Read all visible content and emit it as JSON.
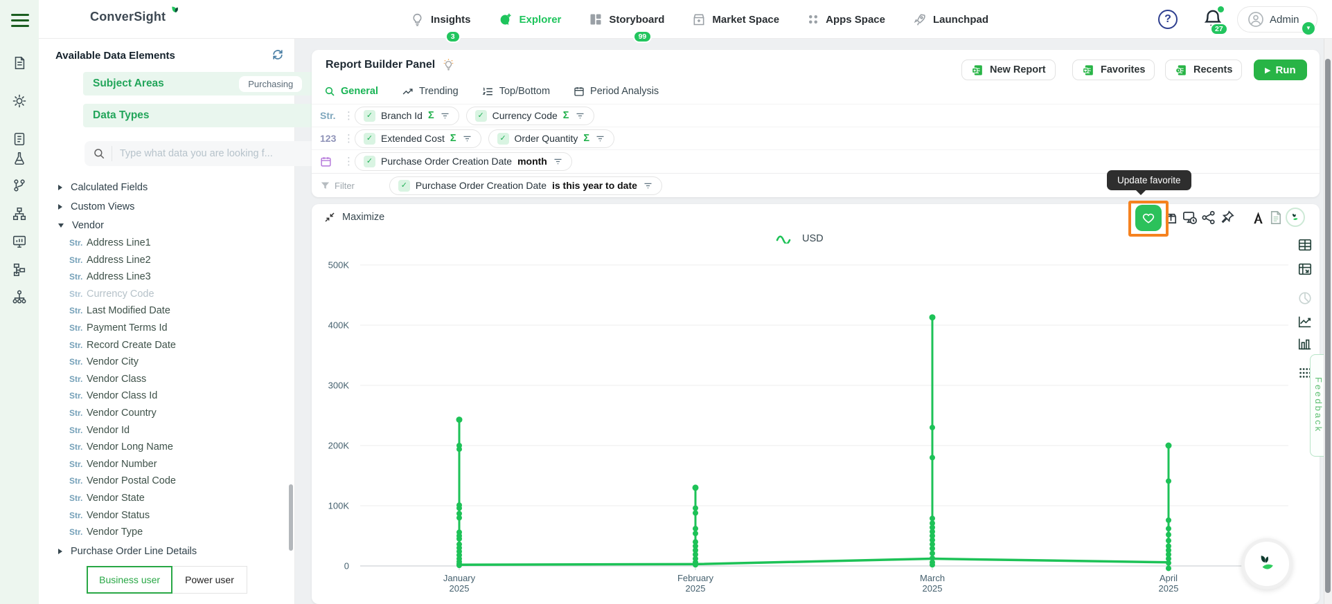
{
  "colors": {
    "accent": "#1fc35c",
    "accent_dark": "#17a34a",
    "highlight_orange": "#f5821f"
  },
  "header": {
    "logo": "ConverSight",
    "nav": [
      {
        "label": "Insights",
        "icon": "lightbulb-icon",
        "badge": "3"
      },
      {
        "label": "Explorer",
        "icon": "chat-plus-icon",
        "active": true
      },
      {
        "label": "Storyboard",
        "icon": "grid-layout-icon",
        "badge": "99"
      },
      {
        "label": "Market Space",
        "icon": "storefront-icon"
      },
      {
        "label": "Apps Space",
        "icon": "apps-dots-icon"
      },
      {
        "label": "Launchpad",
        "icon": "rocket-icon"
      }
    ],
    "help": "?",
    "notifications_badge": "27",
    "user": "Admin"
  },
  "rail_icons": [
    "document-icon",
    "settings-gear-icon",
    "survey-icon",
    "flask-icon",
    "git-branch-icon",
    "sitemap-icon",
    "dashboard-icon",
    "hierarchy-icon",
    "org-chart-icon"
  ],
  "sidebar": {
    "title": "Available Data Elements",
    "subject_areas_label": "Subject Areas",
    "subject_areas_value": "Purchasing",
    "data_types_label": "Data Types",
    "search_placeholder": "Type what data you are looking f...",
    "tree": [
      {
        "label": "Calculated Fields",
        "type": "group",
        "state": "collapsed"
      },
      {
        "label": "Custom Views",
        "type": "group",
        "state": "collapsed"
      },
      {
        "label": "Vendor",
        "type": "group",
        "state": "expanded"
      },
      {
        "label": "Address Line1",
        "prefix": "Str."
      },
      {
        "label": "Address Line2",
        "prefix": "Str."
      },
      {
        "label": "Address Line3",
        "prefix": "Str."
      },
      {
        "label": "Currency Code",
        "prefix": "Str.",
        "disabled": true
      },
      {
        "label": "Last Modified Date",
        "prefix": "Str."
      },
      {
        "label": "Payment Terms Id",
        "prefix": "Str."
      },
      {
        "label": "Record Create Date",
        "prefix": "Str."
      },
      {
        "label": "Vendor City",
        "prefix": "Str."
      },
      {
        "label": "Vendor Class",
        "prefix": "Str."
      },
      {
        "label": "Vendor Class Id",
        "prefix": "Str."
      },
      {
        "label": "Vendor Country",
        "prefix": "Str."
      },
      {
        "label": "Vendor Id",
        "prefix": "Str."
      },
      {
        "label": "Vendor Long Name",
        "prefix": "Str."
      },
      {
        "label": "Vendor Number",
        "prefix": "Str."
      },
      {
        "label": "Vendor Postal Code",
        "prefix": "Str."
      },
      {
        "label": "Vendor State",
        "prefix": "Str."
      },
      {
        "label": "Vendor Status",
        "prefix": "Str."
      },
      {
        "label": "Vendor Type",
        "prefix": "Str."
      },
      {
        "label": "Purchase Order Line Details",
        "type": "group",
        "state": "collapsed"
      }
    ],
    "footer": {
      "business": "Business user",
      "power": "Power user"
    }
  },
  "report_builder": {
    "title": "Report Builder Panel",
    "actions": {
      "new_report": "New Report",
      "favorites": "Favorites",
      "recents": "Recents",
      "run": "Run"
    },
    "tabs": [
      {
        "label": "General",
        "active": true
      },
      {
        "label": "Trending"
      },
      {
        "label": "Top/Bottom"
      },
      {
        "label": "Period Analysis"
      }
    ],
    "rows": [
      {
        "type": "Str.",
        "chips": [
          {
            "label": "Branch Id",
            "sigma": "Σ"
          },
          {
            "label": "Currency Code",
            "sigma": "Σ"
          }
        ]
      },
      {
        "type": "123",
        "chips": [
          {
            "label": "Extended Cost",
            "sigma": "Σ"
          },
          {
            "label": "Order Quantity",
            "sigma": "Σ"
          }
        ]
      },
      {
        "type": "calendar",
        "chips": [
          {
            "label": "Purchase Order Creation Date",
            "bold": "month"
          }
        ]
      }
    ],
    "filter_row": {
      "label": "Filter",
      "chip": {
        "label": "Purchase Order Creation Date",
        "bold": "is this year to date"
      }
    }
  },
  "tooltip": "Update favorite",
  "chart_toolbar": {
    "maximize": "Maximize",
    "icons": [
      "favorite-heart-icon",
      "export-icon",
      "schedule-icon",
      "share-icon",
      "pin-icon",
      "pdf-export-icon",
      "document-export-icon",
      "assistant-icon"
    ]
  },
  "right_toolbar": [
    "table-view-icon",
    "pivot-view-icon",
    "pie-chart-icon",
    "line-chart-icon",
    "bar-chart-icon",
    "more-grid-icon"
  ],
  "feedback_tab": "Feedback",
  "chart_data": {
    "type": "line",
    "title": "",
    "legend": [
      {
        "name": "USD",
        "color": "#1dc257"
      }
    ],
    "categories": [
      "January 2025",
      "February 2025",
      "March 2025",
      "April 2025"
    ],
    "ylim": [
      0,
      500000
    ],
    "yticks": [
      0,
      100000,
      200000,
      300000,
      400000,
      500000
    ],
    "ytick_labels": [
      "0",
      "100K",
      "200K",
      "300K",
      "400K",
      "500K"
    ],
    "grid": true,
    "legend_position": "top-center",
    "series": [
      {
        "name": "USD",
        "points_by_month": [
          [
            243000,
            200000,
            194000,
            101000,
            96000,
            87000,
            80000,
            56000,
            50000,
            45000,
            36000,
            30000,
            24000,
            18000,
            12000,
            7000,
            3000,
            1000
          ],
          [
            130000,
            96000,
            88000,
            62000,
            54000,
            40000,
            33000,
            26000,
            19000,
            12000,
            6000,
            2000
          ],
          [
            413000,
            230000,
            180000,
            79000,
            71000,
            64000,
            57000,
            50000,
            43000,
            36000,
            29000,
            21000,
            13000,
            6000,
            2000
          ],
          [
            200000,
            141000,
            76000,
            62000,
            52000,
            42000,
            33000,
            26000,
            19000,
            12000,
            5000,
            -4000
          ]
        ],
        "trend_line": [
          2000,
          3000,
          12000,
          6000
        ]
      }
    ]
  }
}
